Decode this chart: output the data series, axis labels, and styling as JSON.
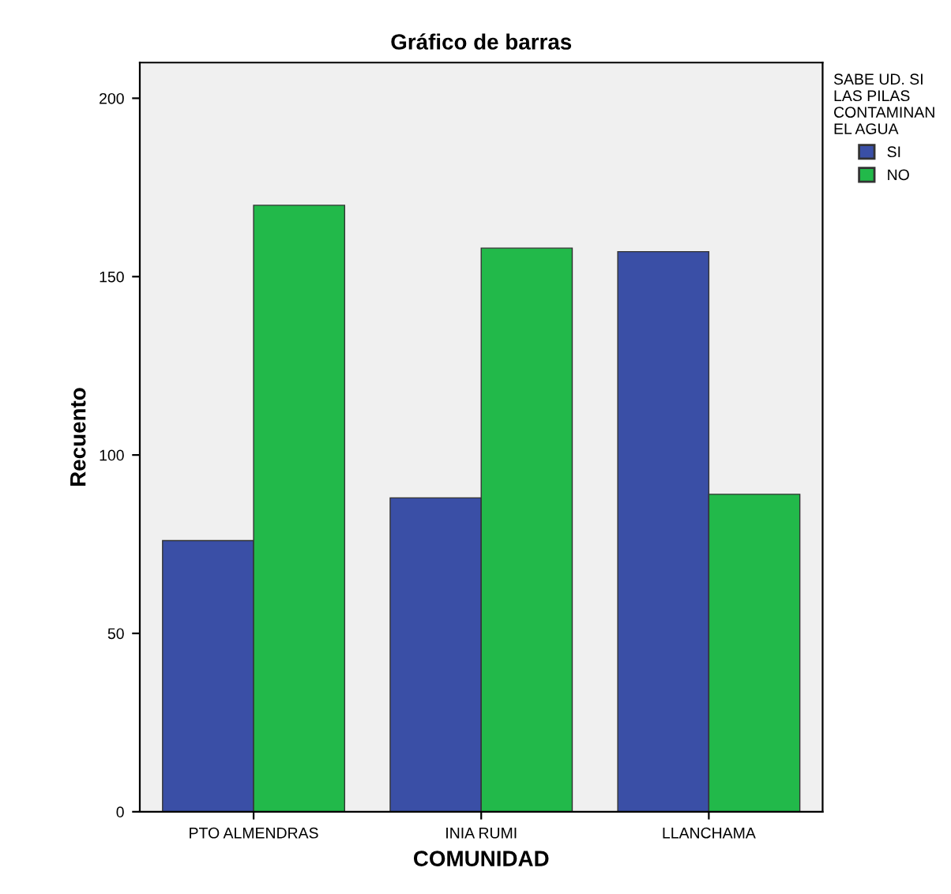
{
  "chart_data": {
    "type": "bar",
    "title": "Gráfico de barras",
    "xlabel": "COMUNIDAD",
    "ylabel": "Recuento",
    "legend_title": "SABE UD. SI\nLAS PILAS\nCONTAMINAN\nEL AGUA",
    "categories": [
      "PTO ALMENDRAS",
      "INIA RUMI",
      "LLANCHAMA"
    ],
    "series": [
      {
        "name": "SI",
        "color": "#3a4fa6",
        "values": [
          76,
          88,
          157
        ]
      },
      {
        "name": "NO",
        "color": "#22b94a",
        "values": [
          170,
          158,
          89
        ]
      }
    ],
    "ylim": [
      0,
      210
    ],
    "yticks": [
      0,
      50,
      100,
      150,
      200
    ],
    "grid": false,
    "legend": "top right"
  }
}
